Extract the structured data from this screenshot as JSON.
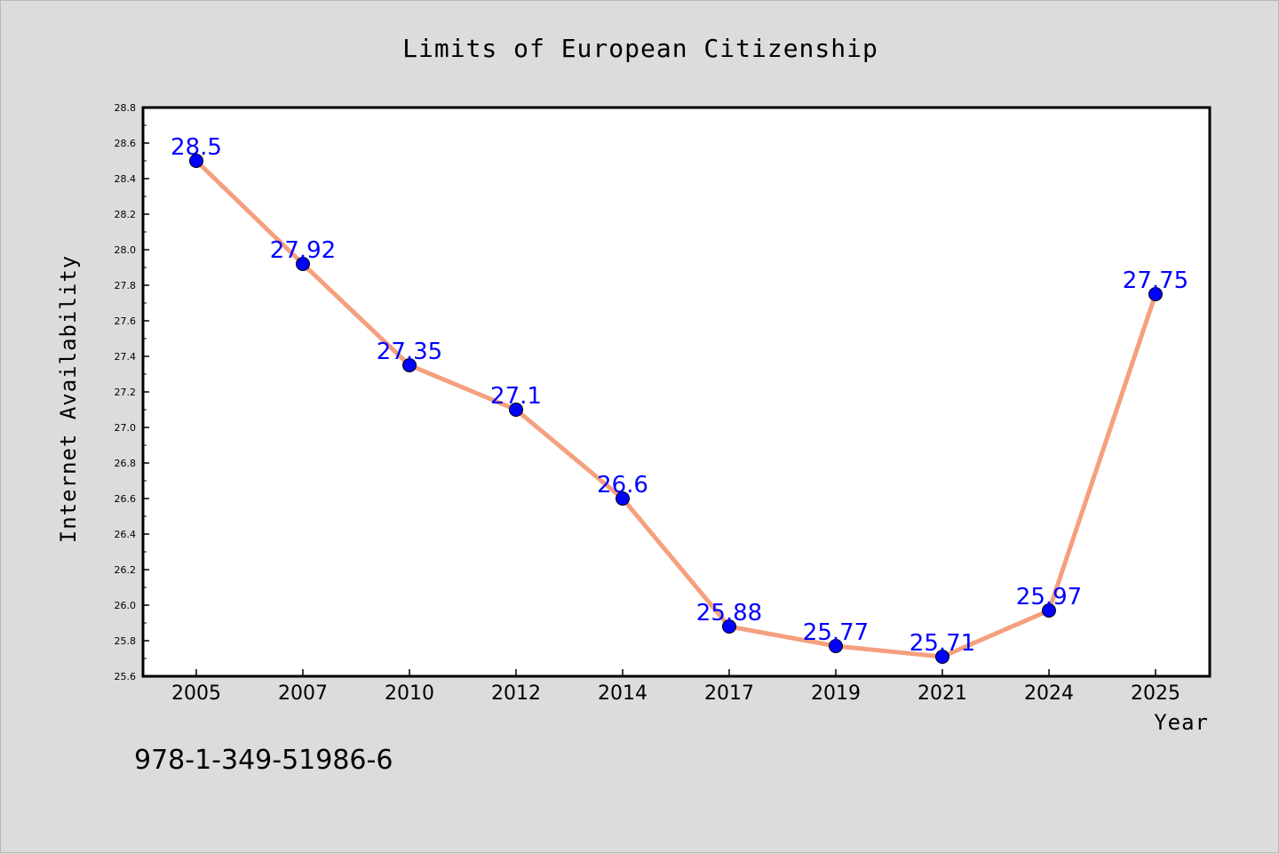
{
  "chart_data": {
    "type": "line",
    "title": "Limits of European Citizenship",
    "xlabel": "Year",
    "ylabel": "Internet Availability",
    "categories": [
      "2005",
      "2007",
      "2010",
      "2012",
      "2014",
      "2017",
      "2019",
      "2021",
      "2024",
      "2025"
    ],
    "series": [
      {
        "values": [
          28.5,
          27.92,
          27.35,
          27.1,
          26.6,
          25.88,
          25.77,
          25.71,
          25.97,
          27.75
        ]
      }
    ],
    "data_labels": [
      "28.5",
      "27.92",
      "27.35",
      "27.1",
      "26.6",
      "25.88",
      "25.77",
      "25.71",
      "25.97",
      "27.75"
    ],
    "ylim": [
      25.6,
      28.8
    ],
    "yticks": [
      "25.6",
      "25.8",
      "26.0",
      "26.2",
      "26.4",
      "26.6",
      "26.8",
      "27.0",
      "27.2",
      "27.4",
      "27.6",
      "27.8",
      "28.0",
      "28.2",
      "28.4",
      "28.6",
      "28.8"
    ],
    "grid": false,
    "legend": "none",
    "colors": {
      "line": "#f4a07e",
      "marker": "#0000ff",
      "label": "#0000ff",
      "plot_bg": "#ffffff",
      "page_bg": "#dcdcdc"
    }
  },
  "footer": {
    "code": "978-1-349-51986-6"
  }
}
